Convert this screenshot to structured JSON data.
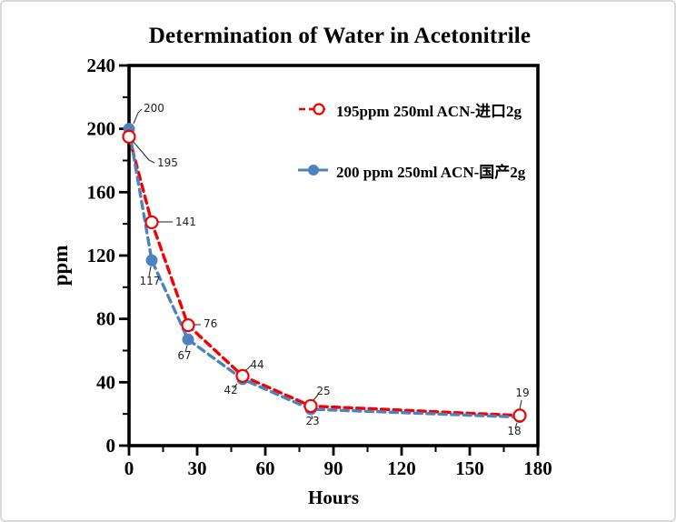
{
  "window": {
    "background": "#ffffff",
    "border_color": "#d9d9d9"
  },
  "chart_data": {
    "type": "line",
    "title": "Determination of Water in Acetonitrile",
    "xlabel": "Hours",
    "ylabel": "ppm",
    "xlim": [
      0,
      180
    ],
    "ylim": [
      0,
      240
    ],
    "x_major_ticks": [
      0,
      30,
      60,
      90,
      120,
      150,
      180
    ],
    "x_minor_step": 15,
    "y_major_ticks": [
      0,
      40,
      80,
      120,
      160,
      200,
      240
    ],
    "y_minor_step": 20,
    "grid": false,
    "legend_position": "inside-upper-right",
    "axis_color": "#000000",
    "x": [
      0,
      10,
      26,
      50,
      80,
      172
    ],
    "series": [
      {
        "name": "195ppm  250ml ACN-进口2g",
        "color": "#f40000",
        "line": "dashed",
        "marker": "open-circle",
        "values": [
          195,
          141,
          76,
          44,
          25,
          19
        ]
      },
      {
        "name": "200 ppm 250ml ACN-国产2g",
        "color": "#4f81bd",
        "line": "dashed",
        "marker": "filled-circle",
        "values": [
          200,
          117,
          67,
          42,
          23,
          18
        ]
      }
    ],
    "point_labels_visible": true
  }
}
